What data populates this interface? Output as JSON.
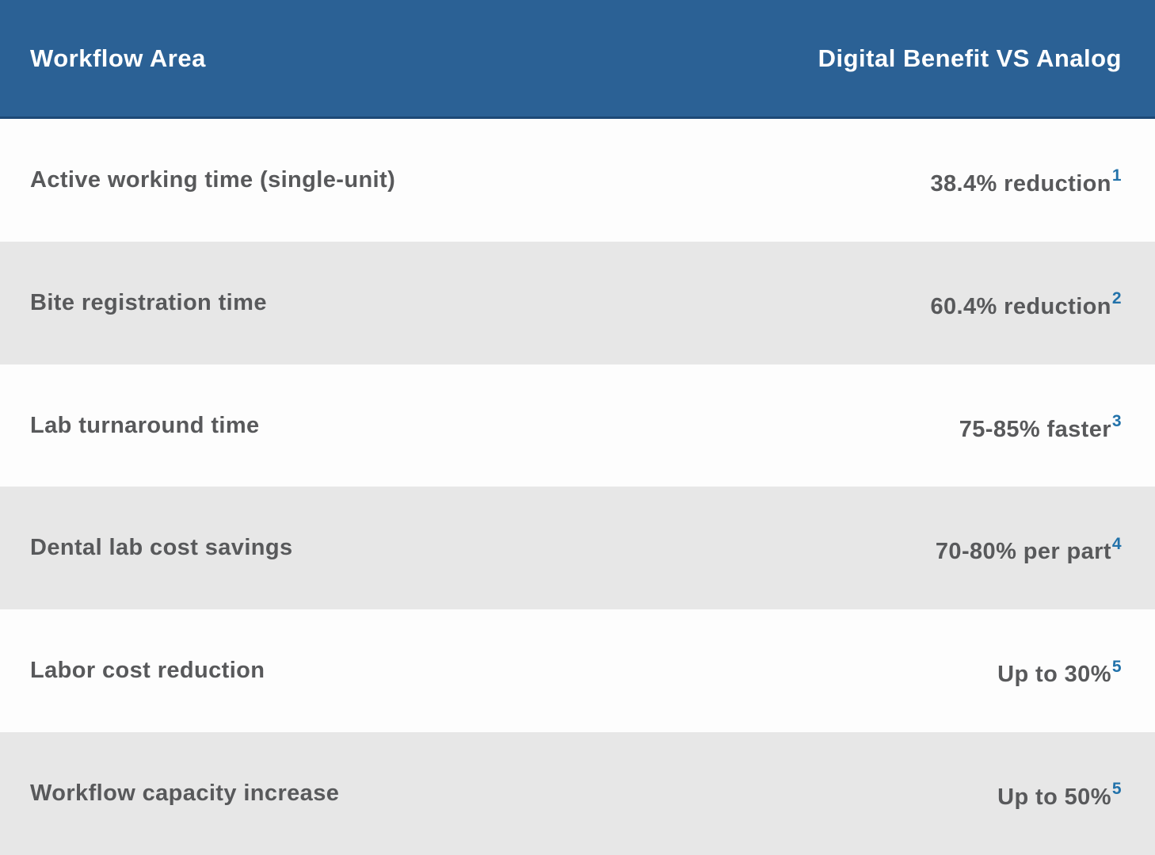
{
  "table": {
    "header": {
      "col1": "Workflow Area",
      "col2": "Digital Benefit VS Analog"
    },
    "rows": [
      {
        "area": "Active working time (single-unit)",
        "benefit": "38.4% reduction",
        "footnote": "1"
      },
      {
        "area": "Bite registration time",
        "benefit": "60.4% reduction",
        "footnote": "2"
      },
      {
        "area": "Lab turnaround time",
        "benefit": "75-85% faster",
        "footnote": "3"
      },
      {
        "area": "Dental lab cost savings",
        "benefit": "70-80% per part",
        "footnote": "4"
      },
      {
        "area": "Labor cost reduction",
        "benefit": "Up to 30%",
        "footnote": "5"
      },
      {
        "area": "Workflow capacity increase",
        "benefit": "Up to 50%",
        "footnote": "5"
      }
    ]
  },
  "chart_data": {
    "type": "table",
    "title": "",
    "columns": [
      "Workflow Area",
      "Digital Benefit VS Analog"
    ],
    "rows": [
      [
        "Active working time (single-unit)",
        "38.4% reduction (footnote 1)"
      ],
      [
        "Bite registration time",
        "60.4% reduction (footnote 2)"
      ],
      [
        "Lab turnaround time",
        "75-85% faster (footnote 3)"
      ],
      [
        "Dental lab cost savings",
        "70-80% per part (footnote 4)"
      ],
      [
        "Labor cost reduction",
        "Up to 30% (footnote 5)"
      ],
      [
        "Workflow capacity increase",
        "Up to 50% (footnote 5)"
      ]
    ],
    "layout_hints": "header row blue with white bold text; body rows alternate white and light gray; benefit column right-aligned with blue superscript footnote markers"
  },
  "colors": {
    "header_bg": "#2b6195",
    "header_border": "#1d4976",
    "header_text": "#ffffff",
    "row_bg": "#fdfdfd",
    "row_alt_bg": "#e7e7e7",
    "row_text": "#58595b",
    "footnote_color": "#2272aa"
  }
}
